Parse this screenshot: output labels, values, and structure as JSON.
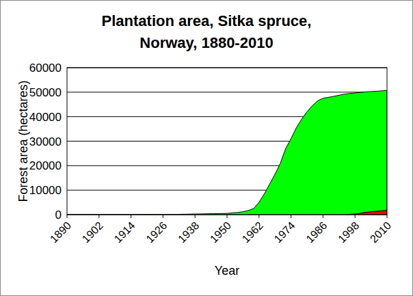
{
  "chart_data": {
    "type": "area",
    "title": "Plantation area, Sitka spruce,\nNorway, 1880-2010",
    "x_label": "Year",
    "y_label": "Forest area (hectares)",
    "stacked": true,
    "grid": true,
    "x": [
      1890,
      1900,
      1910,
      1920,
      1930,
      1940,
      1945,
      1950,
      1954,
      1956,
      1958,
      1960,
      1962,
      1964,
      1966,
      1968,
      1970,
      1972,
      1974,
      1976,
      1978,
      1980,
      1982,
      1984,
      1986,
      1990,
      1994,
      1998,
      2002,
      2006,
      2010
    ],
    "series": [
      {
        "color": "#ff0000",
        "values": [
          0,
          0,
          0,
          0,
          0,
          0,
          0,
          0,
          0,
          0,
          0,
          0,
          0,
          0,
          0,
          0,
          0,
          0,
          0,
          0,
          0,
          0,
          0,
          0,
          0,
          0,
          0,
          300,
          1000,
          1400,
          1800
        ]
      },
      {
        "color": "#00ff00",
        "values": [
          0,
          0,
          20,
          50,
          100,
          300,
          400,
          500,
          900,
          1200,
          1700,
          2500,
          5000,
          8500,
          12500,
          16500,
          21000,
          27000,
          31000,
          35500,
          39000,
          42000,
          44500,
          46500,
          47500,
          48300,
          49200,
          49400,
          49100,
          49000,
          48900
        ]
      }
    ],
    "xlim": [
      1890,
      2010
    ],
    "xticks": [
      1890,
      1902,
      1914,
      1926,
      1938,
      1950,
      1962,
      1974,
      1986,
      1998,
      2010
    ],
    "ylim": [
      0,
      60000
    ],
    "yticks": [
      0,
      10000,
      20000,
      30000,
      40000,
      50000,
      60000
    ]
  }
}
